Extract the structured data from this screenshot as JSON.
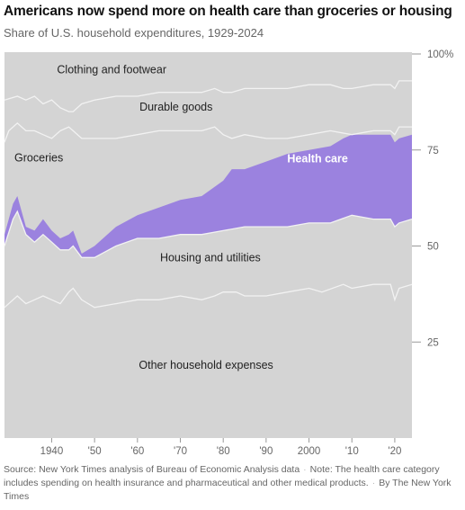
{
  "title": "Americans now spend more on health care than groceries or housing",
  "subtitle": "Share of U.S. household expenditures, 1929-2024",
  "source": {
    "source_text": "Source: New York Times analysis of Bureau of Economic Analysis data",
    "note_text": "Note: The health care category includes spending on health insurance and pharmaceutical and other medical products.",
    "credit_text": "By The New York Times"
  },
  "colors": {
    "background_band": "#d4d4d4",
    "boundary_line": "#f2f2f2",
    "health_care": "#9b82df",
    "axis_text": "#666666",
    "tick": "#999999"
  },
  "chart_data": {
    "type": "area",
    "title": "Americans now spend more on health care than groceries or housing",
    "subtitle": "Share of U.S. household expenditures, 1929-2024",
    "xlabel": "",
    "ylabel": "",
    "xlim": [
      1929,
      2024
    ],
    "ylim": [
      0,
      100
    ],
    "x_ticks": [
      {
        "value": 1940,
        "label": "1940"
      },
      {
        "value": 1950,
        "label": "'50"
      },
      {
        "value": 1960,
        "label": "'60"
      },
      {
        "value": 1970,
        "label": "'70"
      },
      {
        "value": 1980,
        "label": "'80"
      },
      {
        "value": 1990,
        "label": "'90"
      },
      {
        "value": 2000,
        "label": "2000"
      },
      {
        "value": 2010,
        "label": "'10"
      },
      {
        "value": 2020,
        "label": "'20"
      }
    ],
    "y_ticks": [
      {
        "value": 25,
        "label": "25"
      },
      {
        "value": 50,
        "label": "50"
      },
      {
        "value": 75,
        "label": "75"
      },
      {
        "value": 100,
        "label": "100%"
      }
    ],
    "stacking": "cumulative",
    "series_order_bottom_to_top": [
      "Other household expenses",
      "Housing and utilities",
      "Health care",
      "Groceries",
      "Durable goods",
      "Clothing and footwear"
    ],
    "boundaries": [
      {
        "name": "Other household expenses",
        "upper_edge": [
          [
            1929,
            34
          ],
          [
            1932,
            37
          ],
          [
            1934,
            35
          ],
          [
            1936,
            36
          ],
          [
            1938,
            37
          ],
          [
            1940,
            36
          ],
          [
            1942,
            35
          ],
          [
            1944,
            38
          ],
          [
            1945,
            39
          ],
          [
            1947,
            36
          ],
          [
            1950,
            34
          ],
          [
            1955,
            35
          ],
          [
            1960,
            36
          ],
          [
            1965,
            36
          ],
          [
            1970,
            37
          ],
          [
            1975,
            36
          ],
          [
            1978,
            37
          ],
          [
            1980,
            38
          ],
          [
            1983,
            38
          ],
          [
            1985,
            37
          ],
          [
            1990,
            37
          ],
          [
            1995,
            38
          ],
          [
            2000,
            39
          ],
          [
            2003,
            38
          ],
          [
            2008,
            40
          ],
          [
            2010,
            39
          ],
          [
            2015,
            40
          ],
          [
            2018,
            40
          ],
          [
            2019,
            40
          ],
          [
            2020,
            36
          ],
          [
            2021,
            39
          ],
          [
            2024,
            40
          ]
        ]
      },
      {
        "name": "Housing and utilities",
        "upper_edge": [
          [
            1929,
            50
          ],
          [
            1931,
            57
          ],
          [
            1932,
            59
          ],
          [
            1934,
            53
          ],
          [
            1936,
            51
          ],
          [
            1938,
            53
          ],
          [
            1940,
            51
          ],
          [
            1942,
            49
          ],
          [
            1944,
            49
          ],
          [
            1945,
            50
          ],
          [
            1947,
            47
          ],
          [
            1950,
            47
          ],
          [
            1955,
            50
          ],
          [
            1960,
            52
          ],
          [
            1965,
            52
          ],
          [
            1970,
            53
          ],
          [
            1975,
            53
          ],
          [
            1980,
            54
          ],
          [
            1985,
            55
          ],
          [
            1990,
            55
          ],
          [
            1995,
            55
          ],
          [
            2000,
            56
          ],
          [
            2005,
            56
          ],
          [
            2010,
            58
          ],
          [
            2015,
            57
          ],
          [
            2019,
            57
          ],
          [
            2020,
            55
          ],
          [
            2021,
            56
          ],
          [
            2024,
            57
          ]
        ]
      },
      {
        "name": "Health care",
        "upper_edge": [
          [
            1929,
            53
          ],
          [
            1931,
            61
          ],
          [
            1932,
            63
          ],
          [
            1934,
            55
          ],
          [
            1936,
            54
          ],
          [
            1938,
            57
          ],
          [
            1940,
            54
          ],
          [
            1942,
            52
          ],
          [
            1944,
            53
          ],
          [
            1945,
            54
          ],
          [
            1947,
            48
          ],
          [
            1950,
            50
          ],
          [
            1955,
            55
          ],
          [
            1960,
            58
          ],
          [
            1965,
            60
          ],
          [
            1970,
            62
          ],
          [
            1975,
            63
          ],
          [
            1980,
            67
          ],
          [
            1982,
            70
          ],
          [
            1985,
            70
          ],
          [
            1990,
            72
          ],
          [
            1995,
            74
          ],
          [
            2000,
            75
          ],
          [
            2005,
            76
          ],
          [
            2008,
            78
          ],
          [
            2010,
            79
          ],
          [
            2015,
            79
          ],
          [
            2019,
            79
          ],
          [
            2020,
            77
          ],
          [
            2021,
            78
          ],
          [
            2024,
            79
          ]
        ]
      },
      {
        "name": "Groceries",
        "upper_edge": [
          [
            1929,
            77
          ],
          [
            1930,
            80
          ],
          [
            1932,
            82
          ],
          [
            1934,
            80
          ],
          [
            1936,
            80
          ],
          [
            1938,
            79
          ],
          [
            1940,
            78
          ],
          [
            1942,
            80
          ],
          [
            1944,
            81
          ],
          [
            1945,
            80
          ],
          [
            1947,
            78
          ],
          [
            1950,
            78
          ],
          [
            1955,
            78
          ],
          [
            1960,
            79
          ],
          [
            1965,
            80
          ],
          [
            1970,
            80
          ],
          [
            1975,
            80
          ],
          [
            1978,
            81
          ],
          [
            1980,
            79
          ],
          [
            1982,
            78
          ],
          [
            1985,
            79
          ],
          [
            1990,
            78
          ],
          [
            1995,
            78
          ],
          [
            2000,
            79
          ],
          [
            2005,
            80
          ],
          [
            2010,
            79
          ],
          [
            2015,
            80
          ],
          [
            2019,
            80
          ],
          [
            2020,
            79
          ],
          [
            2021,
            81
          ],
          [
            2024,
            81
          ]
        ]
      },
      {
        "name": "Durable goods",
        "upper_edge": [
          [
            1929,
            88
          ],
          [
            1932,
            89
          ],
          [
            1934,
            88
          ],
          [
            1936,
            89
          ],
          [
            1938,
            87
          ],
          [
            1940,
            88
          ],
          [
            1942,
            86
          ],
          [
            1944,
            85
          ],
          [
            1945,
            85
          ],
          [
            1947,
            87
          ],
          [
            1950,
            88
          ],
          [
            1955,
            89
          ],
          [
            1960,
            89
          ],
          [
            1965,
            90
          ],
          [
            1970,
            90
          ],
          [
            1975,
            90
          ],
          [
            1978,
            91
          ],
          [
            1980,
            90
          ],
          [
            1982,
            90
          ],
          [
            1985,
            91
          ],
          [
            1990,
            91
          ],
          [
            1995,
            91
          ],
          [
            2000,
            92
          ],
          [
            2005,
            92
          ],
          [
            2008,
            91
          ],
          [
            2010,
            91
          ],
          [
            2015,
            92
          ],
          [
            2019,
            92
          ],
          [
            2020,
            91
          ],
          [
            2021,
            93
          ],
          [
            2024,
            93
          ]
        ]
      },
      {
        "name": "Clothing and footwear",
        "upper_edge": [
          [
            1929,
            100
          ],
          [
            2024,
            100
          ]
        ]
      }
    ],
    "labels": [
      {
        "series": "Clothing and footwear",
        "text": "Clothing and footwear",
        "x": 1954,
        "y": 95
      },
      {
        "series": "Durable goods",
        "text": "Durable goods",
        "x": 1969,
        "y": 85.3
      },
      {
        "series": "Groceries",
        "text": "Groceries",
        "x": 1937,
        "y": 72
      },
      {
        "series": "Health care",
        "text": "Health care",
        "x": 2002,
        "y": 71.8
      },
      {
        "series": "Housing and utilities",
        "text": "Housing and utilities",
        "x": 1977,
        "y": 46
      },
      {
        "series": "Other household expenses",
        "text": "Other household expenses",
        "x": 1976,
        "y": 18
      }
    ],
    "grid": false
  }
}
